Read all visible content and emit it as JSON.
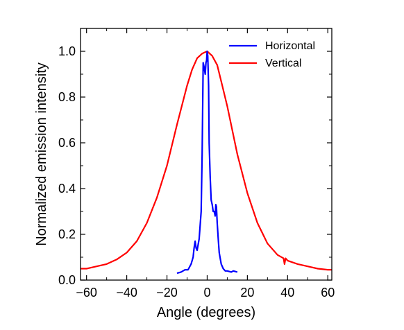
{
  "chart_data": {
    "type": "line",
    "title": "",
    "xlabel": "Angle (degrees)",
    "ylabel": "Normalized emission intensity",
    "xlim": [
      -63,
      62
    ],
    "ylim": [
      0,
      1.1
    ],
    "x_ticks": [
      -60,
      -40,
      -20,
      0,
      20,
      40,
      60
    ],
    "x_tick_labels": [
      "−60",
      "−40",
      "−20",
      "0",
      "20",
      "40",
      "60"
    ],
    "y_ticks": [
      0.0,
      0.2,
      0.4,
      0.6,
      0.8,
      1.0
    ],
    "y_tick_labels": [
      "0.0",
      "0.2",
      "0.4",
      "0.6",
      "0.8",
      "1.0"
    ],
    "grid": false,
    "legend_position": "top-right",
    "series": [
      {
        "name": "Horizontal",
        "color": "#0000ff",
        "x": [
          -15,
          -13,
          -11,
          -9.5,
          -8,
          -7,
          -6.5,
          -6,
          -5.5,
          -5,
          -4,
          -3,
          -2.5,
          -2,
          -1.5,
          -1,
          -0.6,
          -0.3,
          0,
          0.3,
          0.7,
          1,
          1.5,
          2,
          2.5,
          3,
          3.5,
          4,
          4.3,
          4.6,
          5,
          5.5,
          6,
          7,
          8,
          9,
          10,
          12,
          13,
          15
        ],
        "y": [
          0.03,
          0.035,
          0.045,
          0.045,
          0.07,
          0.1,
          0.14,
          0.17,
          0.14,
          0.13,
          0.18,
          0.3,
          0.55,
          0.95,
          0.93,
          0.9,
          0.95,
          0.96,
          1.0,
          0.98,
          0.85,
          0.6,
          0.45,
          0.35,
          0.33,
          0.3,
          0.3,
          0.28,
          0.33,
          0.32,
          0.25,
          0.18,
          0.12,
          0.07,
          0.05,
          0.04,
          0.04,
          0.035,
          0.04,
          0.035
        ]
      },
      {
        "name": "Vertical",
        "color": "#ff0000",
        "x": [
          -63,
          -60,
          -55,
          -50,
          -45,
          -40,
          -35,
          -30,
          -25,
          -20,
          -15,
          -10,
          -7.5,
          -5,
          -2.5,
          0,
          2.5,
          5,
          7.5,
          10,
          15,
          20,
          25,
          30,
          35,
          38,
          38.5,
          39,
          40,
          45,
          50,
          55,
          60,
          62
        ],
        "y": [
          0.05,
          0.05,
          0.06,
          0.07,
          0.09,
          0.12,
          0.17,
          0.25,
          0.36,
          0.5,
          0.68,
          0.85,
          0.92,
          0.97,
          0.99,
          1.0,
          0.98,
          0.94,
          0.85,
          0.76,
          0.55,
          0.38,
          0.25,
          0.16,
          0.11,
          0.095,
          0.07,
          0.095,
          0.085,
          0.07,
          0.06,
          0.05,
          0.045,
          0.045
        ]
      }
    ]
  }
}
